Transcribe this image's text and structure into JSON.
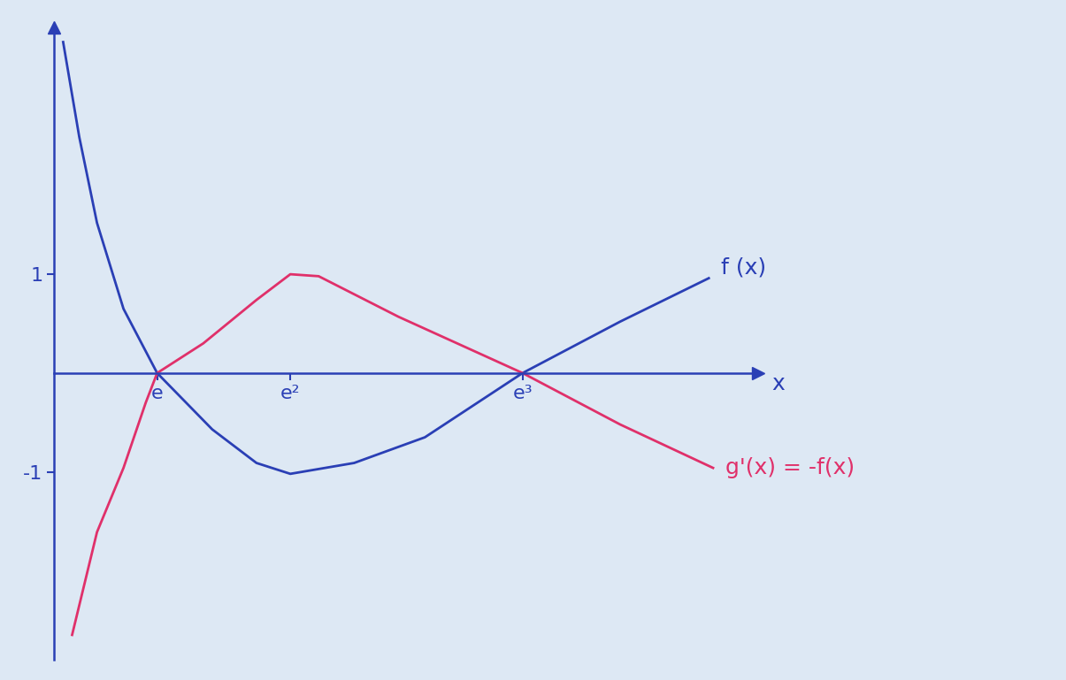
{
  "chart_data": {
    "type": "line",
    "x_label": "x",
    "xlim": [
      0,
      34.5
    ],
    "ylim": [
      -2.9,
      3.5
    ],
    "xticks": [
      {
        "value": 5.04,
        "label": "e"
      },
      {
        "value": 11.57,
        "label": "e²"
      },
      {
        "value": 22.96,
        "label": "e³"
      }
    ],
    "yticks": [
      -1,
      1
    ],
    "series": [
      {
        "name": "f (x)",
        "color": "#2a3fb5",
        "x": [
          0.43,
          1.22,
          2.09,
          3.39,
          5.04,
          7.74,
          9.91,
          11.57,
          14.7,
          18.17,
          22.96,
          27.74,
          32.09
        ],
        "values": [
          3.35,
          2.39,
          1.52,
          0.65,
          0,
          -0.57,
          -0.91,
          -1.02,
          -0.91,
          -0.65,
          0,
          0.52,
          0.96
        ]
      },
      {
        "name": "g'(x) = -f(x)",
        "color": "#e0306a",
        "x": [
          0.87,
          2.09,
          3.39,
          4.48,
          5.04,
          7.3,
          9.91,
          11.57,
          12.96,
          16.87,
          22.96,
          27.74,
          32.3
        ],
        "values": [
          -2.65,
          -1.61,
          -0.96,
          -0.3,
          0,
          0.3,
          0.74,
          1.0,
          0.98,
          0.57,
          0,
          -0.52,
          -0.96
        ]
      }
    ]
  }
}
